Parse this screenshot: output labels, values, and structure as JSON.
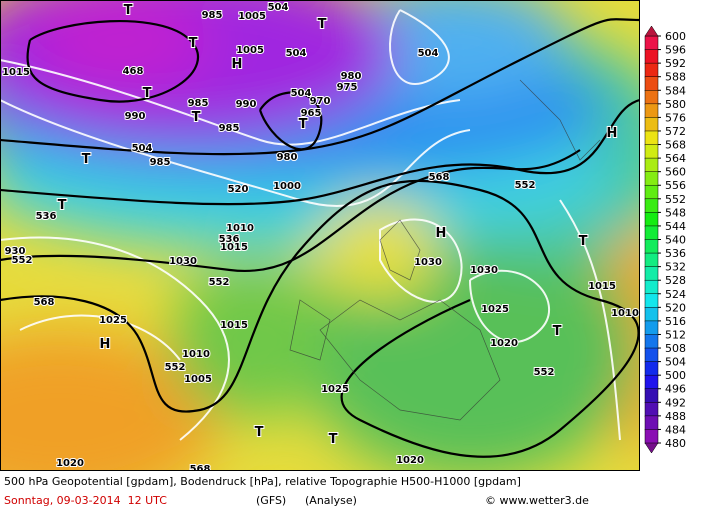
{
  "map": {
    "labels": [
      "T",
      "985",
      "1005",
      "504",
      "T",
      "T",
      "1005",
      "504",
      "504",
      "H",
      "468",
      "1015",
      "980",
      "975",
      "T",
      "985",
      "990",
      "504",
      "970",
      "965",
      "T",
      "T",
      "990",
      "985",
      "504",
      "985",
      "T",
      "H",
      "980",
      "1000",
      "568",
      "552",
      "520",
      "536",
      "T",
      "1010",
      "536",
      "1015",
      "H",
      "T",
      "930",
      "552",
      "1030",
      "1030",
      "1030",
      "552",
      "568",
      "1015",
      "1025",
      "1015",
      "1025",
      "1010",
      "T",
      "H",
      "1020",
      "1010",
      "552",
      "1005",
      "552",
      "1025",
      "T",
      "T",
      "1020",
      "568",
      "1020"
    ]
  },
  "colorbar": {
    "ticks": [
      600,
      596,
      592,
      588,
      584,
      580,
      576,
      572,
      568,
      564,
      560,
      556,
      552,
      548,
      544,
      540,
      536,
      532,
      528,
      524,
      520,
      516,
      512,
      508,
      504,
      500,
      496,
      492,
      488,
      484,
      480
    ]
  },
  "footer": {
    "line1": "500 hPa Geopotential [gpdam], Bodendruck [hPa], relative Topographie H500-H1000 [gpdam]",
    "date": "Sonntag, 09-03-2014  12 UTC",
    "model": "(GFS)",
    "analysis": "(Analyse)",
    "copyright": "© www.wetter3.de"
  }
}
